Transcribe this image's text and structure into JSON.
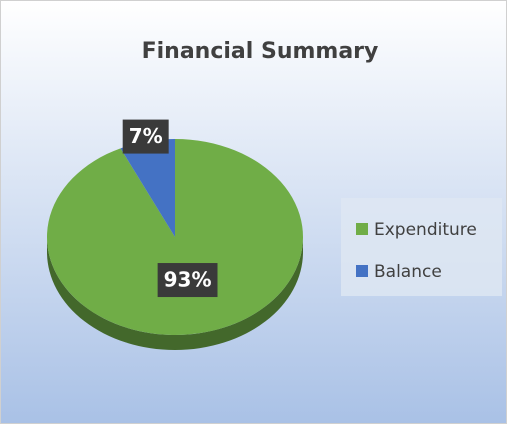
{
  "chart_data": {
    "type": "pie",
    "title": "Financial Summary",
    "categories": [
      "Expenditure",
      "Balance"
    ],
    "values": [
      93,
      7
    ],
    "value_labels": [
      "93%",
      "7%"
    ],
    "colors": [
      "#70ad47",
      "#4472c4"
    ],
    "legend": "right"
  }
}
